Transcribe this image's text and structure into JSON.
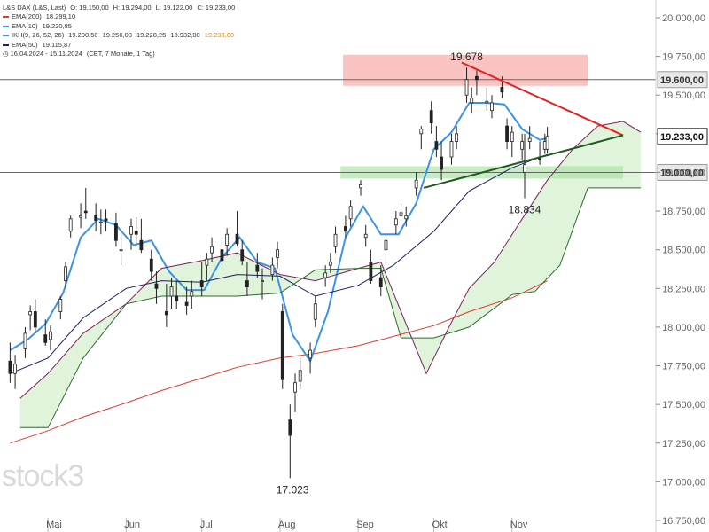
{
  "header": {
    "instrument": "L&S DAX (L&S, Last)",
    "ohlc": [
      "O: 19.150,00",
      "H: 19.294,00",
      "L: 19.122,00",
      "C: 19.233,00"
    ]
  },
  "legend": [
    {
      "label": "EMA(200)",
      "value": "18.299,10",
      "color": "#e23b2e"
    },
    {
      "label": "EMA(10)",
      "value": "19.220,85",
      "color": "#3a93e6"
    },
    {
      "label": "IKH(9, 26, 52, 26)",
      "values": [
        "19.200,50",
        "19.256,00",
        "19.228,25",
        "18.932,00",
        "19.233,00"
      ],
      "value_colors": [
        "#333333",
        "#333333",
        "#333333",
        "#333333",
        "#e58a00"
      ],
      "color": "#3a93e6"
    },
    {
      "label": "EMA(50)",
      "value": "19.115,87",
      "color": "#1e1a66"
    }
  ],
  "period_line": "16.04.2024 - 15.11.2024",
  "period_note": "(CET, 7 Monate, 1 Tag)",
  "watermark": "stock3",
  "chart_data": {
    "type": "line",
    "title": "",
    "y_axis": {
      "min": 16750,
      "max": 20000,
      "ticks": [
        16750,
        17000,
        17250,
        17500,
        17750,
        18000,
        18250,
        18500,
        18750,
        19000,
        19250,
        19500,
        19750,
        20000
      ],
      "tick_labels": [
        "16.750,00",
        "17.000,00",
        "17.250,00",
        "17.500,00",
        "17.750,00",
        "18.000,00",
        "18.250,00",
        "18.500,00",
        "18.750,00",
        "19.000,00",
        "19.250,00",
        "19.500,00",
        "19.750,00",
        "20.000,00"
      ]
    },
    "x_axis": {
      "month_labels": [
        {
          "label": "Mai",
          "date": "2024-05-01"
        },
        {
          "label": "Jun",
          "date": "2024-06-01"
        },
        {
          "label": "Jul",
          "date": "2024-07-01"
        },
        {
          "label": "Aug",
          "date": "2024-08-01"
        },
        {
          "label": "Sep",
          "date": "2024-09-01"
        },
        {
          "label": "Okt",
          "date": "2024-10-01"
        },
        {
          "label": "Nov",
          "date": "2024-11-01"
        }
      ]
    },
    "horizontal_levels": [
      {
        "value": 19600,
        "label": "19.600,00",
        "color": "#666666"
      },
      {
        "value": 19000,
        "label": "19.000,00",
        "color": "#666666"
      }
    ],
    "last_price": {
      "value": 19233,
      "label": "19.233,00"
    },
    "annotations": [
      {
        "text": "19.678",
        "date": "2024-10-14",
        "value": 19678
      },
      {
        "text": "18.834",
        "date": "2024-11-06",
        "value": 18834
      },
      {
        "text": "17.023",
        "date": "2024-08-06",
        "value": 17023
      }
    ],
    "zones": [
      {
        "name": "resistance",
        "color": "#f5a3a0",
        "date_from": "2024-08-26",
        "date_to": "2024-12-01",
        "value_from": 19560,
        "value_to": 19760
      },
      {
        "name": "support",
        "color": "#a8e4a0",
        "date_from": "2024-08-25",
        "date_to": "2024-12-15",
        "value_from": 18960,
        "value_to": 19040
      }
    ],
    "trendlines": [
      {
        "name": "resistance-trendline",
        "color": "#e82020",
        "from": {
          "date": "2024-10-12",
          "value": 19710
        },
        "to": {
          "date": "2024-12-15",
          "value": 19240
        }
      },
      {
        "name": "support-trendline",
        "color": "#1e5a1e",
        "from": {
          "date": "2024-09-27",
          "value": 18900
        },
        "to": {
          "date": "2024-12-15",
          "value": 19240
        }
      }
    ],
    "series": [
      {
        "name": "EMA(200)",
        "color": "#e23b2e",
        "kind": "line",
        "points": [
          [
            "2024-04-16",
            17250
          ],
          [
            "2024-05-01",
            17330
          ],
          [
            "2024-05-15",
            17420
          ],
          [
            "2024-06-01",
            17510
          ],
          [
            "2024-06-15",
            17590
          ],
          [
            "2024-07-01",
            17670
          ],
          [
            "2024-07-15",
            17740
          ],
          [
            "2024-08-01",
            17800
          ],
          [
            "2024-08-15",
            17830
          ],
          [
            "2024-09-01",
            17880
          ],
          [
            "2024-09-15",
            17940
          ],
          [
            "2024-10-01",
            18010
          ],
          [
            "2024-10-15",
            18100
          ],
          [
            "2024-11-01",
            18190
          ],
          [
            "2024-11-15",
            18299
          ]
        ]
      },
      {
        "name": "EMA(10)",
        "color": "#3a93e6",
        "kind": "line",
        "points": [
          [
            "2024-04-16",
            17850
          ],
          [
            "2024-04-23",
            17920
          ],
          [
            "2024-04-30",
            18020
          ],
          [
            "2024-05-07",
            18220
          ],
          [
            "2024-05-14",
            18580
          ],
          [
            "2024-05-21",
            18700
          ],
          [
            "2024-05-28",
            18660
          ],
          [
            "2024-06-04",
            18530
          ],
          [
            "2024-06-11",
            18560
          ],
          [
            "2024-06-18",
            18360
          ],
          [
            "2024-06-25",
            18240
          ],
          [
            "2024-07-02",
            18240
          ],
          [
            "2024-07-09",
            18450
          ],
          [
            "2024-07-16",
            18580
          ],
          [
            "2024-07-23",
            18420
          ],
          [
            "2024-07-30",
            18380
          ],
          [
            "2024-08-06",
            17950
          ],
          [
            "2024-08-13",
            17780
          ],
          [
            "2024-08-20",
            18100
          ],
          [
            "2024-08-27",
            18580
          ],
          [
            "2024-09-03",
            18780
          ],
          [
            "2024-09-10",
            18600
          ],
          [
            "2024-09-17",
            18600
          ],
          [
            "2024-09-24",
            18800
          ],
          [
            "2024-10-01",
            19150
          ],
          [
            "2024-10-08",
            19260
          ],
          [
            "2024-10-15",
            19450
          ],
          [
            "2024-10-22",
            19450
          ],
          [
            "2024-10-29",
            19440
          ],
          [
            "2024-11-05",
            19280
          ],
          [
            "2024-11-12",
            19210
          ],
          [
            "2024-11-15",
            19221
          ]
        ]
      },
      {
        "name": "EMA(50)",
        "color": "#1e1a66",
        "kind": "line",
        "points": [
          [
            "2024-04-16",
            17700
          ],
          [
            "2024-05-01",
            17800
          ],
          [
            "2024-05-15",
            18060
          ],
          [
            "2024-06-01",
            18250
          ],
          [
            "2024-06-15",
            18300
          ],
          [
            "2024-07-01",
            18290
          ],
          [
            "2024-07-15",
            18340
          ],
          [
            "2024-08-01",
            18330
          ],
          [
            "2024-08-15",
            18200
          ],
          [
            "2024-09-01",
            18270
          ],
          [
            "2024-09-15",
            18400
          ],
          [
            "2024-10-01",
            18620
          ],
          [
            "2024-10-15",
            18880
          ],
          [
            "2024-11-01",
            19030
          ],
          [
            "2024-11-15",
            19116
          ]
        ]
      },
      {
        "name": "Kumo-A",
        "color": "#7a1f5c",
        "kind": "cloud-edge",
        "points": [
          [
            "2024-04-20",
            17540
          ],
          [
            "2024-05-01",
            17700
          ],
          [
            "2024-05-15",
            17960
          ],
          [
            "2024-06-01",
            18150
          ],
          [
            "2024-06-15",
            18380
          ],
          [
            "2024-07-01",
            18430
          ],
          [
            "2024-07-15",
            18480
          ],
          [
            "2024-08-01",
            18340
          ],
          [
            "2024-08-15",
            18300
          ],
          [
            "2024-09-01",
            18380
          ],
          [
            "2024-09-10",
            18420
          ],
          [
            "2024-09-20",
            18020
          ],
          [
            "2024-09-28",
            17700
          ],
          [
            "2024-10-07",
            18000
          ],
          [
            "2024-10-15",
            18250
          ],
          [
            "2024-10-25",
            18420
          ],
          [
            "2024-11-05",
            18700
          ],
          [
            "2024-11-15",
            18950
          ],
          [
            "2024-11-25",
            19150
          ],
          [
            "2024-12-05",
            19300
          ],
          [
            "2024-12-15",
            19330
          ],
          [
            "2024-12-22",
            19260
          ]
        ]
      },
      {
        "name": "Kumo-B",
        "color": "#2e6b2e",
        "kind": "cloud-edge",
        "points": [
          [
            "2024-04-20",
            17350
          ],
          [
            "2024-05-01",
            17350
          ],
          [
            "2024-05-15",
            17800
          ],
          [
            "2024-06-01",
            18150
          ],
          [
            "2024-06-15",
            18200
          ],
          [
            "2024-07-01",
            18200
          ],
          [
            "2024-07-15",
            18200
          ],
          [
            "2024-08-01",
            18220
          ],
          [
            "2024-08-15",
            18370
          ],
          [
            "2024-09-01",
            18380
          ],
          [
            "2024-09-10",
            18380
          ],
          [
            "2024-09-18",
            17930
          ],
          [
            "2024-10-01",
            17930
          ],
          [
            "2024-10-15",
            18000
          ],
          [
            "2024-11-01",
            18210
          ],
          [
            "2024-11-10",
            18230
          ],
          [
            "2024-11-20",
            18400
          ],
          [
            "2024-12-01",
            18900
          ],
          [
            "2024-12-22",
            18900
          ]
        ]
      }
    ],
    "candles_approx": [
      [
        "2024-04-16",
        17780,
        17900,
        17640,
        17700
      ],
      [
        "2024-04-18",
        17700,
        17820,
        17600,
        17760
      ],
      [
        "2024-04-22",
        17860,
        18000,
        17800,
        17960
      ],
      [
        "2024-04-24",
        18080,
        18140,
        17980,
        18100
      ],
      [
        "2024-04-26",
        18100,
        18180,
        17960,
        18000
      ],
      [
        "2024-04-30",
        17950,
        18050,
        17880,
        17900
      ],
      [
        "2024-05-02",
        17920,
        18010,
        17850,
        17970
      ],
      [
        "2024-05-06",
        18100,
        18200,
        18050,
        18180
      ],
      [
        "2024-05-08",
        18300,
        18420,
        18260,
        18390
      ],
      [
        "2024-05-10",
        18620,
        18720,
        18580,
        18700
      ],
      [
        "2024-05-14",
        18710,
        18800,
        18640,
        18720
      ],
      [
        "2024-05-16",
        18750,
        18900,
        18700,
        18740
      ],
      [
        "2024-05-20",
        18720,
        18800,
        18620,
        18690
      ],
      [
        "2024-05-22",
        18680,
        18760,
        18600,
        18680
      ],
      [
        "2024-05-24",
        18700,
        18760,
        18620,
        18690
      ],
      [
        "2024-05-28",
        18670,
        18740,
        18520,
        18560
      ],
      [
        "2024-05-30",
        18500,
        18600,
        18400,
        18500
      ],
      [
        "2024-06-03",
        18600,
        18700,
        18500,
        18650
      ],
      [
        "2024-06-05",
        18620,
        18710,
        18540,
        18600
      ],
      [
        "2024-06-07",
        18560,
        18700,
        18480,
        18500
      ],
      [
        "2024-06-11",
        18440,
        18500,
        18300,
        18360
      ],
      [
        "2024-06-13",
        18280,
        18360,
        18150,
        18250
      ],
      [
        "2024-06-17",
        18100,
        18280,
        18000,
        18080
      ],
      [
        "2024-06-19",
        18200,
        18320,
        18120,
        18260
      ],
      [
        "2024-06-21",
        18200,
        18300,
        18120,
        18170
      ],
      [
        "2024-06-25",
        18160,
        18260,
        18080,
        18140
      ],
      [
        "2024-06-27",
        18200,
        18300,
        18120,
        18230
      ],
      [
        "2024-07-01",
        18300,
        18420,
        18200,
        18260
      ],
      [
        "2024-07-03",
        18400,
        18480,
        18300,
        18440
      ],
      [
        "2024-07-05",
        18480,
        18580,
        18420,
        18520
      ],
      [
        "2024-07-09",
        18500,
        18580,
        18400,
        18430
      ],
      [
        "2024-07-11",
        18530,
        18640,
        18460,
        18600
      ],
      [
        "2024-07-15",
        18600,
        18750,
        18520,
        18540
      ],
      [
        "2024-07-17",
        18500,
        18560,
        18400,
        18430
      ],
      [
        "2024-07-19",
        18300,
        18420,
        18200,
        18260
      ],
      [
        "2024-07-23",
        18400,
        18480,
        18320,
        18360
      ],
      [
        "2024-07-25",
        18300,
        18380,
        18180,
        18300
      ],
      [
        "2024-07-29",
        18340,
        18450,
        18300,
        18400
      ],
      [
        "2024-07-31",
        18450,
        18550,
        18380,
        18500
      ],
      [
        "2024-08-02",
        18100,
        18150,
        17600,
        17660
      ],
      [
        "2024-08-05",
        17400,
        17500,
        17023,
        17300
      ],
      [
        "2024-08-07",
        17580,
        17700,
        17450,
        17640
      ],
      [
        "2024-08-09",
        17650,
        17800,
        17600,
        17720
      ],
      [
        "2024-08-13",
        17800,
        17900,
        17700,
        17850
      ],
      [
        "2024-08-15",
        18050,
        18200,
        18000,
        18150
      ],
      [
        "2024-08-19",
        18320,
        18400,
        18260,
        18350
      ],
      [
        "2024-08-21",
        18400,
        18480,
        18350,
        18420
      ],
      [
        "2024-08-23",
        18520,
        18650,
        18480,
        18600
      ],
      [
        "2024-08-27",
        18650,
        18720,
        18580,
        18620
      ],
      [
        "2024-08-29",
        18700,
        18820,
        18650,
        18780
      ],
      [
        "2024-09-02",
        18900,
        18950,
        18850,
        18920
      ],
      [
        "2024-09-04",
        18580,
        18660,
        18520,
        18600
      ],
      [
        "2024-09-06",
        18420,
        18500,
        18280,
        18300
      ],
      [
        "2024-09-10",
        18320,
        18400,
        18200,
        18260
      ],
      [
        "2024-09-12",
        18500,
        18600,
        18400,
        18560
      ],
      [
        "2024-09-16",
        18660,
        18750,
        18600,
        18700
      ],
      [
        "2024-09-18",
        18720,
        18800,
        18650,
        18740
      ],
      [
        "2024-09-20",
        18700,
        18780,
        18650,
        18720
      ],
      [
        "2024-09-24",
        18900,
        19000,
        18850,
        18950
      ],
      [
        "2024-09-26",
        19250,
        19300,
        19150,
        19280
      ],
      [
        "2024-09-30",
        19400,
        19460,
        19250,
        19320
      ],
      [
        "2024-10-02",
        19200,
        19300,
        19100,
        19150
      ],
      [
        "2024-10-04",
        19100,
        19200,
        18950,
        19020
      ],
      [
        "2024-10-08",
        19100,
        19250,
        19050,
        19200
      ],
      [
        "2024-10-10",
        19200,
        19300,
        19150,
        19250
      ],
      [
        "2024-10-14",
        19500,
        19678,
        19450,
        19600
      ],
      [
        "2024-10-16",
        19450,
        19550,
        19380,
        19480
      ],
      [
        "2024-10-18",
        19620,
        19660,
        19500,
        19600
      ],
      [
        "2024-10-22",
        19450,
        19550,
        19400,
        19460
      ],
      [
        "2024-10-24",
        19400,
        19500,
        19350,
        19450
      ],
      [
        "2024-10-28",
        19550,
        19620,
        19480,
        19520
      ],
      [
        "2024-10-30",
        19300,
        19350,
        19150,
        19200
      ],
      [
        "2024-11-01",
        19200,
        19300,
        19100,
        19260
      ],
      [
        "2024-11-05",
        19150,
        19250,
        19080,
        19200
      ],
      [
        "2024-11-06",
        19000,
        19250,
        18834,
        19050
      ],
      [
        "2024-11-08",
        19200,
        19300,
        19150,
        19220
      ],
      [
        "2024-11-12",
        19100,
        19200,
        19050,
        19080
      ],
      [
        "2024-11-14",
        19150,
        19250,
        19120,
        19200
      ],
      [
        "2024-11-15",
        19150,
        19294,
        19122,
        19233
      ]
    ]
  }
}
